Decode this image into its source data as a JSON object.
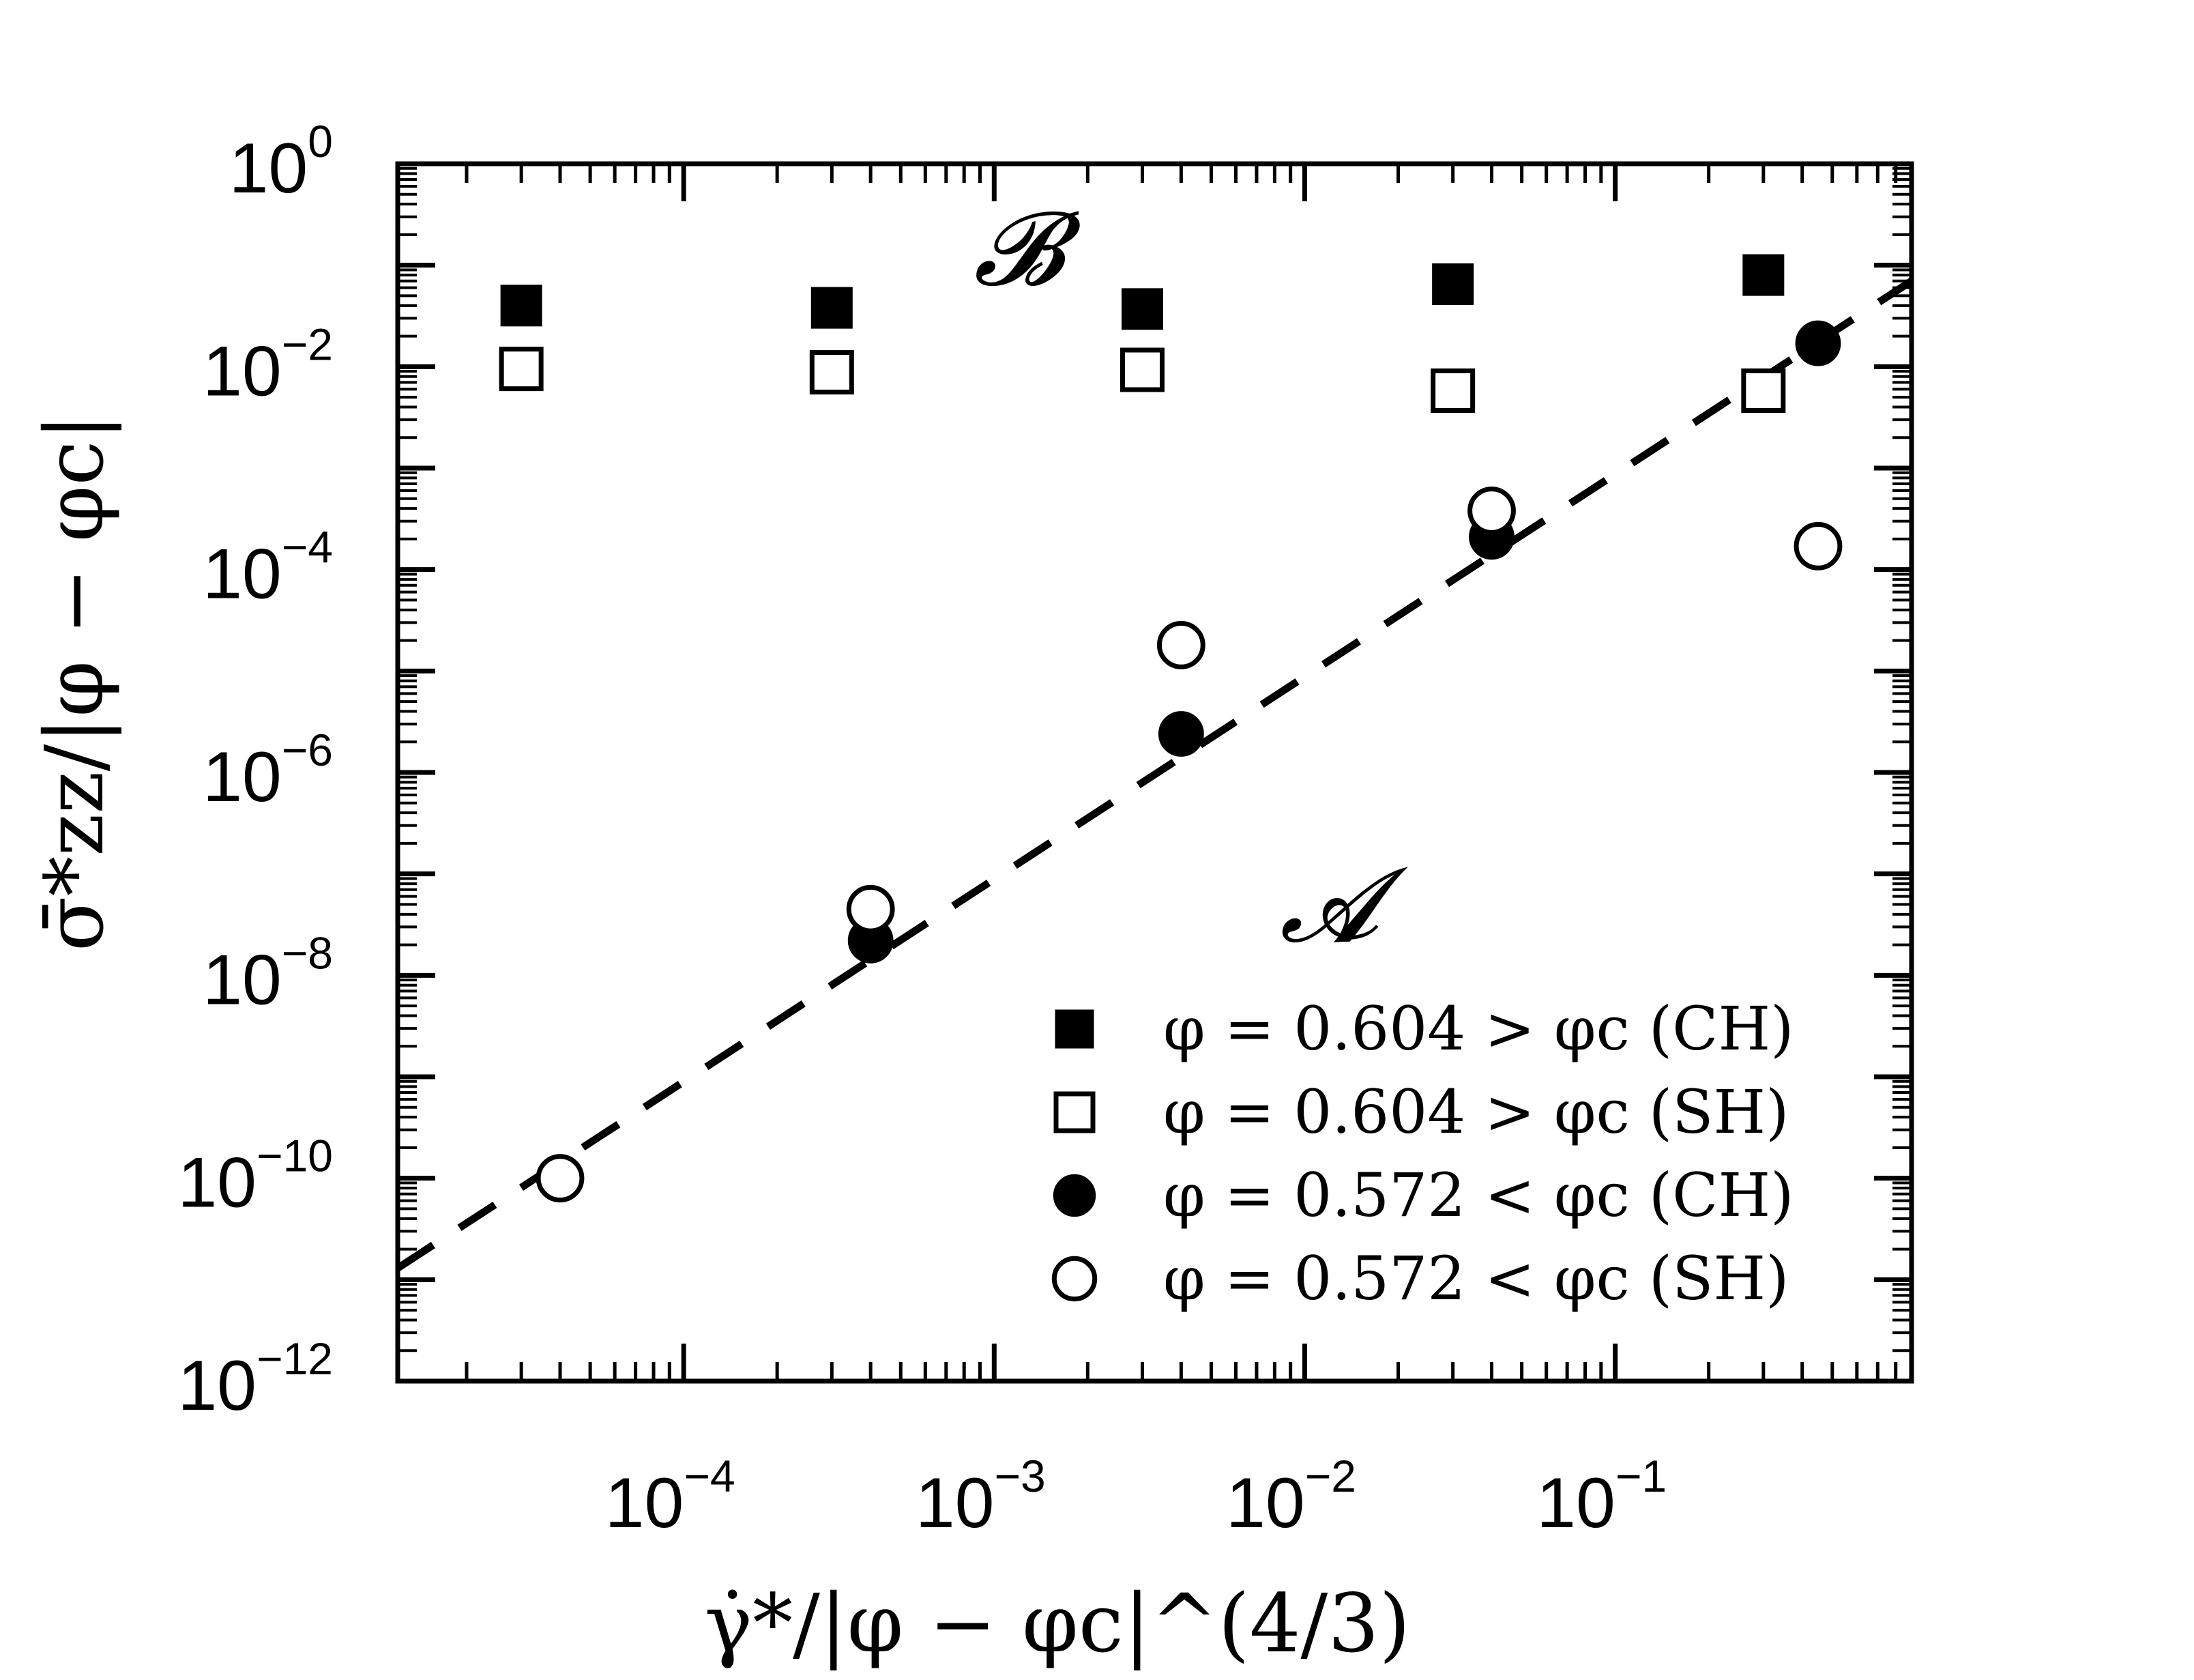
{
  "chart_data": {
    "type": "scatter",
    "title": "",
    "xlabel": "γ̇*/|φ − φc|^(4/3)",
    "ylabel": "σ̄*zz/|φ − φc|",
    "xscale": "log",
    "yscale": "log",
    "xlim": [
      1.2e-05,
      0.9
    ],
    "ylim": [
      1e-12,
      1
    ],
    "x_ticks": [
      {
        "value": 0.0001,
        "label": "10",
        "exp": "−4"
      },
      {
        "value": 0.001,
        "label": "10",
        "exp": "−3"
      },
      {
        "value": 0.01,
        "label": "10",
        "exp": "−2"
      },
      {
        "value": 0.1,
        "label": "10",
        "exp": "−1"
      }
    ],
    "y_ticks": [
      {
        "value": 1e-12,
        "label": "10",
        "exp": "−12"
      },
      {
        "value": 1e-10,
        "label": "10",
        "exp": "−10"
      },
      {
        "value": 1e-08,
        "label": "10",
        "exp": "−8"
      },
      {
        "value": 1e-06,
        "label": "10",
        "exp": "−6"
      },
      {
        "value": 0.0001,
        "label": "10",
        "exp": "−4"
      },
      {
        "value": 0.01,
        "label": "10",
        "exp": "−2"
      },
      {
        "value": 1,
        "label": "10",
        "exp": "0"
      }
    ],
    "grid": false,
    "legend_position": "bottom-right",
    "series": [
      {
        "name": "φ = 0.604 > φc (CH)",
        "marker": "square",
        "fill": "#000000",
        "x": [
          3e-05,
          0.0003,
          0.003,
          0.03,
          0.3
        ],
        "y": [
          0.04,
          0.038,
          0.037,
          0.065,
          0.08
        ]
      },
      {
        "name": "φ = 0.604 > φc (SH)",
        "marker": "square",
        "fill": "#ffffff",
        "x": [
          3e-05,
          0.0003,
          0.003,
          0.03,
          0.3
        ],
        "y": [
          0.0095,
          0.0088,
          0.0093,
          0.0058,
          0.0058
        ]
      },
      {
        "name": "φ = 0.572 < φc (CH)",
        "marker": "circle",
        "fill": "#000000",
        "x": [
          0.0004,
          0.004,
          0.04,
          0.45
        ],
        "y": [
          2.2e-08,
          2.4e-06,
          0.00021,
          0.017
        ]
      },
      {
        "name": "φ = 0.572 < φc (SH)",
        "marker": "circle",
        "fill": "#ffffff",
        "x": [
          4e-05,
          0.0004,
          0.004,
          0.04,
          0.45
        ],
        "y": [
          1e-10,
          4.5e-08,
          1.8e-05,
          0.00038,
          0.00017
        ]
      }
    ],
    "fit_line": {
      "style": "dashed",
      "color": "#000000",
      "x": [
        1.2e-05,
        0.9
      ],
      "y": [
        1.3e-11,
        0.07
      ]
    },
    "annotations": [
      {
        "text": "𝓑",
        "x": 0.0012,
        "y": 0.065
      },
      {
        "text": "𝓐",
        "x": 0.012,
        "y": 2.2e-08
      }
    ]
  }
}
